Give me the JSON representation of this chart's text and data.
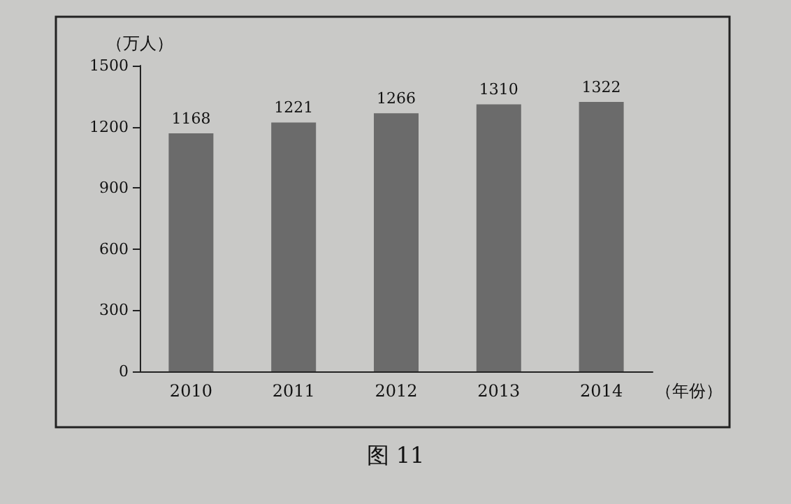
{
  "chart_data": {
    "type": "bar",
    "ylabel": "（万人）",
    "xlabel": "（年份）",
    "annotations": [
      "图 11"
    ],
    "categories": [
      "2010",
      "2011",
      "2012",
      "2013",
      "2014"
    ],
    "values": [
      1168,
      1221,
      1266,
      1310,
      1322
    ],
    "color": "#6b6b6b",
    "ylim": [
      0,
      1500
    ],
    "yticks": [
      0,
      300,
      600,
      900,
      1200,
      1500
    ],
    "data_labels": true,
    "grid": false
  }
}
